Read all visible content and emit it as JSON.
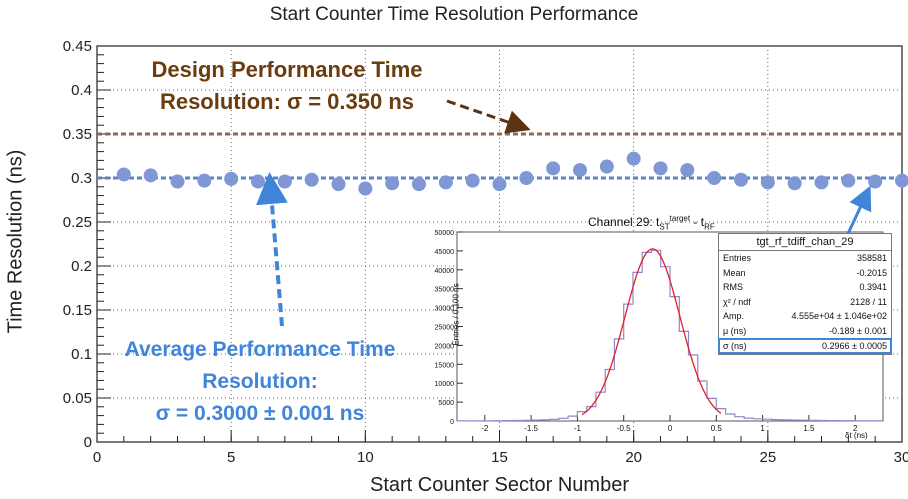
{
  "chart_data": {
    "type": "scatter",
    "title": "Start Counter Time Resolution Performance",
    "xlabel": "Start Counter Sector Number",
    "ylabel": "Time Resolution (ns)",
    "xlim": [
      0,
      30
    ],
    "ylim": [
      0,
      0.45
    ],
    "x_ticks": [
      "0",
      "5",
      "10",
      "15",
      "20",
      "25",
      "30"
    ],
    "y_ticks": [
      "0",
      "0.05",
      "0.1",
      "0.15",
      "0.2",
      "0.25",
      "0.3",
      "0.35",
      "0.4",
      "0.45"
    ],
    "grid": true,
    "series": [
      {
        "name": "",
        "color": "#7f97d4",
        "x": [
          1,
          2,
          3,
          4,
          5,
          6,
          7,
          8,
          9,
          10,
          11,
          12,
          13,
          14,
          15,
          16,
          17,
          18,
          19,
          20,
          21,
          22,
          23,
          24,
          25,
          26,
          27,
          28,
          29,
          30
        ],
        "y": [
          0.304,
          0.303,
          0.296,
          0.297,
          0.299,
          0.296,
          0.296,
          0.298,
          0.293,
          0.288,
          0.294,
          0.293,
          0.295,
          0.297,
          0.293,
          0.3,
          0.311,
          0.309,
          0.313,
          0.322,
          0.311,
          0.309,
          0.3,
          0.298,
          0.295,
          0.294,
          0.295,
          0.297,
          0.296,
          0.297
        ]
      }
    ],
    "reference_lines": [
      {
        "y": 0.35,
        "color": "#8c6a58",
        "style": "dashed"
      },
      {
        "y": 0.3,
        "color": "#5a82c8",
        "style": "dashed"
      }
    ],
    "annotations": {
      "design_line1": "Design Performance Time",
      "design_line2": "Resolution: σ = 0.350 ns",
      "avg_line1": "Average Performance Time",
      "avg_line2": "Resolution:",
      "avg_line3": "σ = 0.3000 ± 0.001 ns"
    },
    "inset": {
      "title_prefix": "Channel 29: t",
      "title_sub": "ST",
      "title_sup": "target",
      "title_mid": " - t",
      "title_sub2": "RF",
      "ylabel": "Entries / 0.100 ns",
      "xlabel": "δt (ns)",
      "xlim": [
        -2.3,
        2.3
      ],
      "ylim": [
        0,
        50000
      ],
      "x_ticks": [
        "-2",
        "-1.5",
        "-1",
        "-0.5",
        "0",
        "0.5",
        "1",
        "1.5",
        "2"
      ],
      "y_ticks": [
        "0",
        "5000",
        "10000",
        "15000",
        "20000",
        "25000",
        "30000",
        "35000",
        "40000",
        "45000",
        "50000"
      ],
      "hist_color": "#8f88c8",
      "fit_color": "#e0202a",
      "fit": {
        "amp": 45550,
        "mean": -0.189,
        "sigma": 0.2966,
        "range": [
          -0.95,
          0.55
        ]
      },
      "stats": {
        "name": "tgt_rf_tdiff_chan_29",
        "rows": [
          {
            "k": "Entries",
            "v": "358581"
          },
          {
            "k": "Mean",
            "v": "-0.2015"
          },
          {
            "k": "RMS",
            "v": "0.3941"
          },
          {
            "k": "χ² / ndf",
            "v": "2128 / 11"
          },
          {
            "k": "Amp.",
            "v": "4.555e+04 ± 1.046e+02"
          },
          {
            "k": "μ (ns)",
            "v": "-0.189 ± 0.001"
          },
          {
            "k": "σ (ns)",
            "v": "0.2966 ± 0.0005"
          }
        ]
      }
    }
  }
}
